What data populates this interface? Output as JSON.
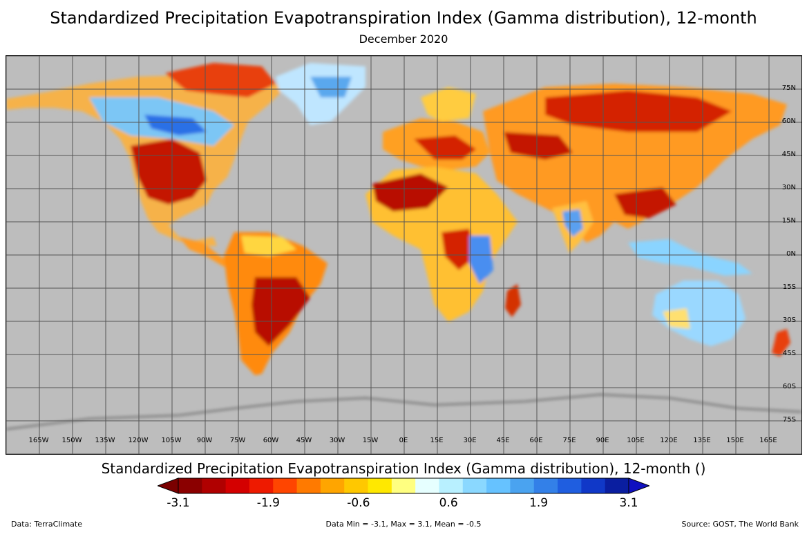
{
  "title": "Standardized Precipitation Evapotranspiration Index (Gamma distribution), 12-month",
  "subtitle": "December 2020",
  "map": {
    "background_color": "#bdbdbd",
    "grid_color": "#555555",
    "lat_labels": [
      "75N",
      "60N",
      "45N",
      "30N",
      "15N",
      "0N",
      "15S",
      "30S",
      "45S",
      "60S",
      "75S"
    ],
    "lon_labels": [
      "165W",
      "150W",
      "135W",
      "120W",
      "105W",
      "90W",
      "75W",
      "60W",
      "45W",
      "30W",
      "15W",
      "0E",
      "15E",
      "30E",
      "45E",
      "60E",
      "75E",
      "90E",
      "105E",
      "120E",
      "135E",
      "150E",
      "165E"
    ]
  },
  "colorbar": {
    "title": "Standardized Precipitation Evapotranspiration Index (Gamma distribution), 12-month ()",
    "tick_labels": [
      "-3.1",
      "-1.9",
      "-0.6",
      "0.6",
      "1.9",
      "3.1"
    ],
    "colors": [
      "#8b0000",
      "#b00000",
      "#d40000",
      "#ee1a00",
      "#ff4500",
      "#ff7a00",
      "#ffa500",
      "#ffc800",
      "#ffe800",
      "#ffff80",
      "#e6ffff",
      "#b8f0ff",
      "#8ad8ff",
      "#66c2ff",
      "#4aa3f0",
      "#3380e8",
      "#1f5ee0",
      "#1038c8",
      "#0a1ea0"
    ],
    "low_arrow_color": "#7a0000",
    "high_arrow_color": "#1010c0"
  },
  "footer": {
    "left": "Data: TerraClimate",
    "center": "Data Min = -3.1, Max = 3.1, Mean = -0.5",
    "right": "Source: GOST, The World Bank"
  }
}
